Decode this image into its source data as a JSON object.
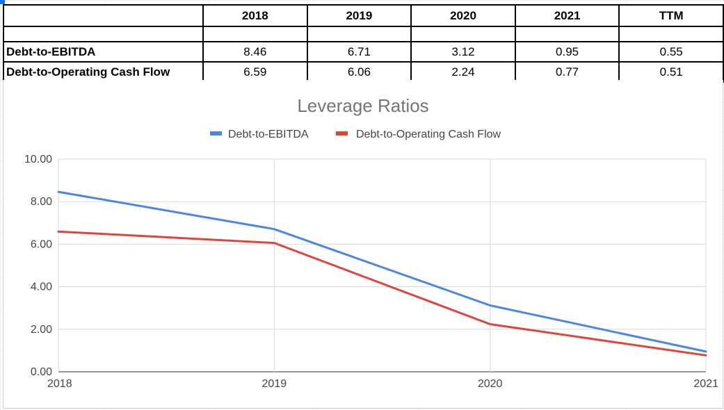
{
  "table": {
    "headers": [
      "2018",
      "2019",
      "2020",
      "2021",
      "TTM"
    ],
    "rows": [
      {
        "label": "Debt-to-EBITDA",
        "values": [
          "8.46",
          "6.71",
          "3.12",
          "0.95",
          "0.55"
        ]
      },
      {
        "label": "Debt-to-Operating Cash Flow",
        "values": [
          "6.59",
          "6.06",
          "2.24",
          "0.77",
          "0.51"
        ]
      }
    ]
  },
  "chart_data": {
    "type": "line",
    "title": "Leverage Ratios",
    "xlabel": "",
    "ylabel": "",
    "x": [
      "2018",
      "2019",
      "2020",
      "2021"
    ],
    "ylim": [
      0,
      10
    ],
    "yticks": [
      "0.00",
      "2.00",
      "4.00",
      "6.00",
      "8.00",
      "10.00"
    ],
    "ytick_values": [
      0,
      2,
      4,
      6,
      8,
      10
    ],
    "grid": true,
    "legend": "top",
    "series": [
      {
        "name": "Debt-to-EBITDA",
        "color": "#4a86e8",
        "values": [
          8.46,
          6.71,
          3.12,
          0.95
        ]
      },
      {
        "name": "Debt-to-Operating Cash Flow",
        "color": "#e0453a",
        "values": [
          6.59,
          6.06,
          2.24,
          0.77
        ]
      }
    ]
  }
}
